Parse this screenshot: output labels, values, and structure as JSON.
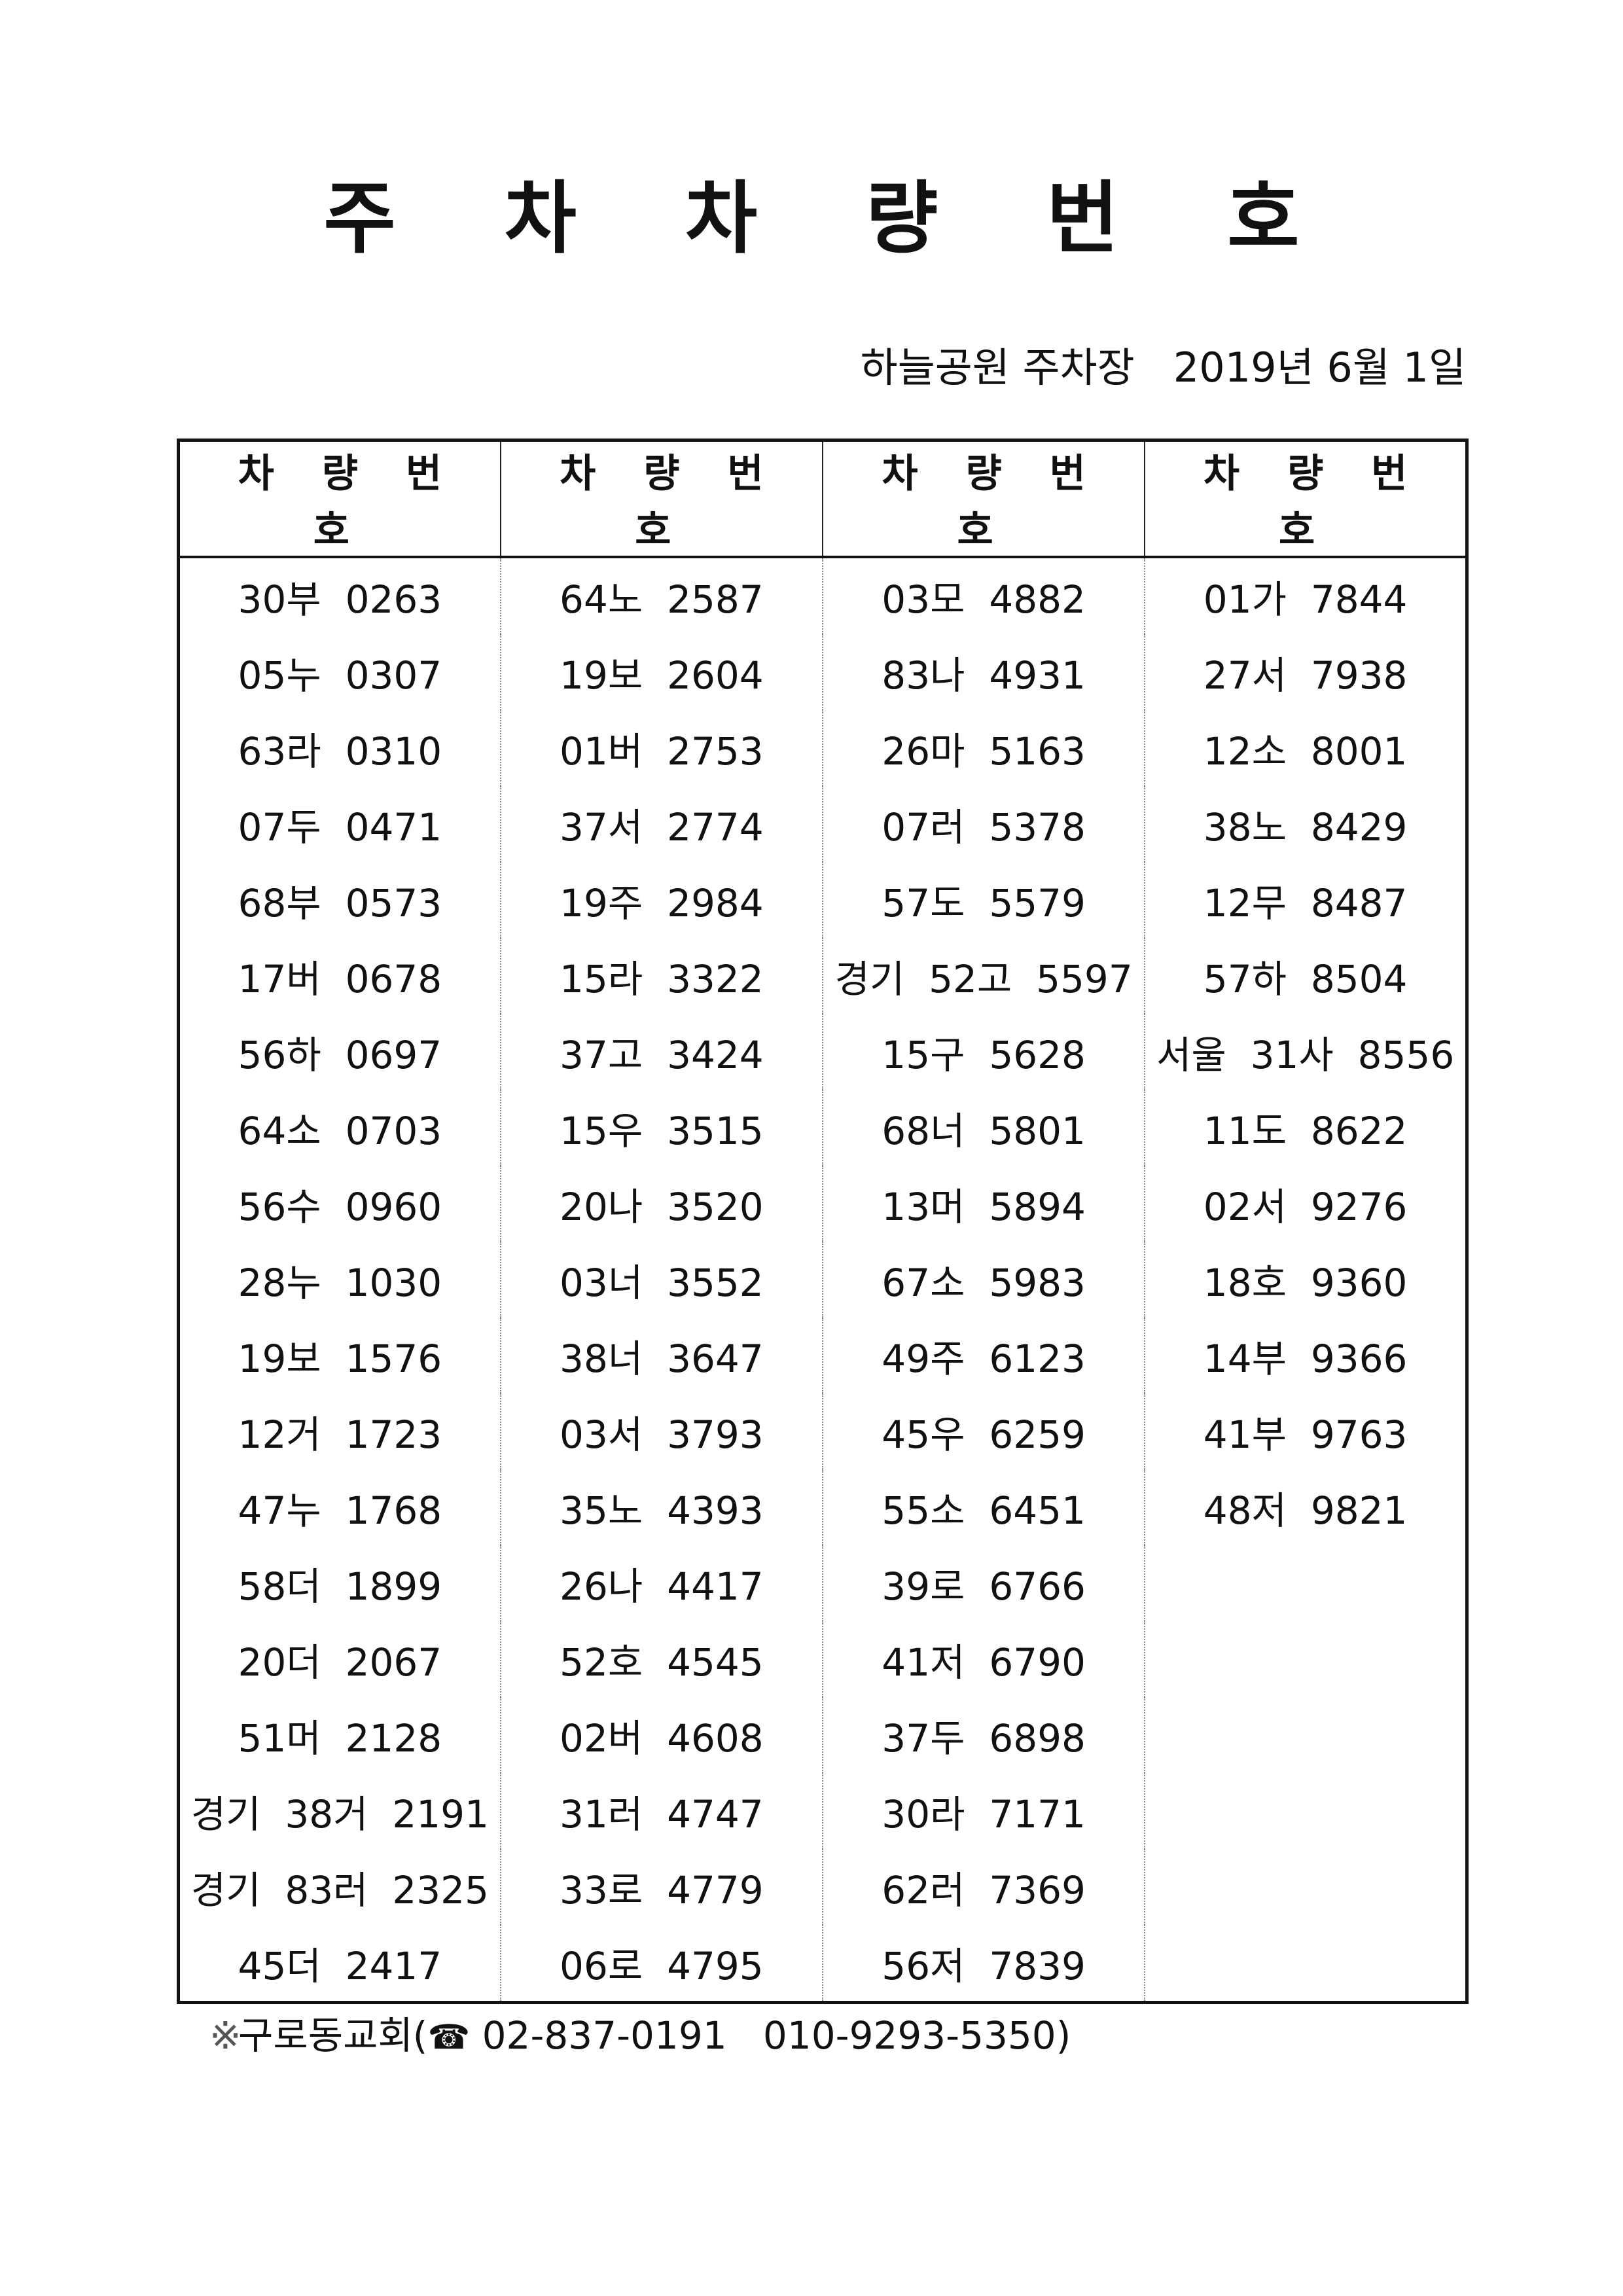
{
  "title": "주 차 차 량 번 호",
  "subtitle": "하늘공원 주차장   2019년 6월 1일",
  "table": {
    "headers": [
      "차 량 번 호",
      "차 량 번 호",
      "차 량 번 호",
      "차 량 번 호"
    ],
    "rows": [
      [
        "30부  0263",
        "64노  2587",
        "03모  4882",
        "01가  7844"
      ],
      [
        "05누  0307",
        "19보  2604",
        "83나  4931",
        "27서  7938"
      ],
      [
        "63라  0310",
        "01버  2753",
        "26마  5163",
        "12소  8001"
      ],
      [
        "07두  0471",
        "37서  2774",
        "07러  5378",
        "38노  8429"
      ],
      [
        "68부  0573",
        "19주  2984",
        "57도  5579",
        "12무  8487"
      ],
      [
        "17버  0678",
        "15라  3322",
        "경기  52고  5597",
        "57하  8504"
      ],
      [
        "56하  0697",
        "37고  3424",
        "15구  5628",
        "서울  31사  8556"
      ],
      [
        "64소  0703",
        "15우  3515",
        "68너  5801",
        "11도  8622"
      ],
      [
        "56수  0960",
        "20나  3520",
        "13머  5894",
        "02서  9276"
      ],
      [
        "28누  1030",
        "03너  3552",
        "67소  5983",
        "18호  9360"
      ],
      [
        "19보  1576",
        "38너  3647",
        "49주  6123",
        "14부  9366"
      ],
      [
        "12거  1723",
        "03서  3793",
        "45우  6259",
        "41부  9763"
      ],
      [
        "47누  1768",
        "35노  4393",
        "55소  6451",
        "48저  9821"
      ],
      [
        "58더  1899",
        "26나  4417",
        "39로  6766",
        ""
      ],
      [
        "20더  2067",
        "52호  4545",
        "41저  6790",
        ""
      ],
      [
        "51머  2128",
        "02버  4608",
        "37두  6898",
        ""
      ],
      [
        "경기  38거  2191",
        "31러  4747",
        "30라  7171",
        ""
      ],
      [
        "경기  83러  2325",
        "33로  4779",
        "62러  7369",
        ""
      ],
      [
        "45더  2417",
        "06로  4795",
        "56저  7839",
        ""
      ]
    ]
  },
  "footer": {
    "mark": "※",
    "church": "구로동교회(",
    "phone_icon": "☎",
    "phone1": " 02-837-0191",
    "phone2": "   010-9293-5350)"
  }
}
